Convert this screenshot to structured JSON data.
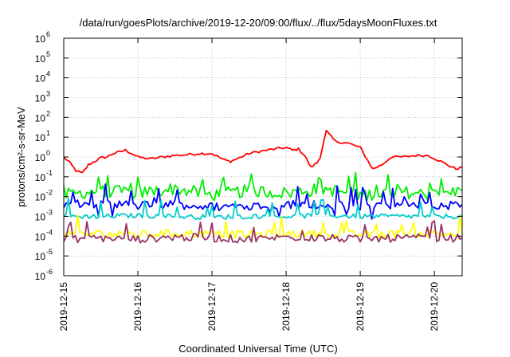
{
  "chart_data": {
    "type": "line",
    "title": "/data/run/goesPlots/archive/2019-12-20/09:00/flux/../flux/5daysMoonFluxes.txt",
    "xlabel": "Coordinated Universal Time (UTC)",
    "ylabel": "protons/cm²-s-sr-MeV",
    "y_scale": "log",
    "ylim": [
      1e-06,
      1000000.0
    ],
    "xlim": [
      "2019-12-15T00:00",
      "2019-12-20T09:00"
    ],
    "grid": true,
    "legend": "none",
    "x_ticks": [
      "2019-12-15",
      "2019-12-16",
      "2019-12-17",
      "2019-12-18",
      "2019-12-19",
      "2019-12-20"
    ],
    "y_ticks": [
      {
        "base": "10",
        "exp": "-6"
      },
      {
        "base": "10",
        "exp": "-5"
      },
      {
        "base": "10",
        "exp": "-4"
      },
      {
        "base": "10",
        "exp": "-3"
      },
      {
        "base": "10",
        "exp": "-2"
      },
      {
        "base": "10",
        "exp": "-1"
      },
      {
        "base": "10",
        "exp": "0"
      },
      {
        "base": "10",
        "exp": "1"
      },
      {
        "base": "10",
        "exp": "2"
      },
      {
        "base": "10",
        "exp": "3"
      },
      {
        "base": "10",
        "exp": "4"
      },
      {
        "base": "10",
        "exp": "5"
      },
      {
        "base": "10",
        "exp": "6"
      }
    ],
    "series": [
      {
        "color": "#ff0000",
        "x": [
          "2019-12-15T00:00",
          "2019-12-15T02:00",
          "2019-12-15T04:00",
          "2019-12-15T06:00",
          "2019-12-15T08:00",
          "2019-12-15T10:00",
          "2019-12-15T12:00",
          "2019-12-15T14:00",
          "2019-12-15T16:00",
          "2019-12-15T18:00",
          "2019-12-15T20:00",
          "2019-12-15T22:00",
          "2019-12-16T00:00",
          "2019-12-16T04:00",
          "2019-12-16T08:00",
          "2019-12-16T12:00",
          "2019-12-16T16:00",
          "2019-12-16T20:00",
          "2019-12-17T00:00",
          "2019-12-17T04:00",
          "2019-12-17T06:00",
          "2019-12-17T08:00",
          "2019-12-17T12:00",
          "2019-12-17T16:00",
          "2019-12-17T20:00",
          "2019-12-18T00:00",
          "2019-12-18T02:00",
          "2019-12-18T04:00",
          "2019-12-18T06:00",
          "2019-12-18T08:00",
          "2019-12-18T10:00",
          "2019-12-18T11:00",
          "2019-12-18T13:00",
          "2019-12-18T16:00",
          "2019-12-18T20:00",
          "2019-12-19T00:00",
          "2019-12-19T04:00",
          "2019-12-19T07:00",
          "2019-12-19T10:00",
          "2019-12-19T14:00",
          "2019-12-19T18:00",
          "2019-12-19T22:00",
          "2019-12-20T02:00",
          "2019-12-20T05:00",
          "2019-12-20T07:00",
          "2019-12-20T09:00"
        ],
        "values": [
          1.0,
          0.5,
          0.2,
          0.15,
          0.4,
          0.6,
          0.9,
          1.0,
          1.5,
          1.8,
          2.2,
          1.5,
          1.0,
          0.8,
          1.0,
          1.2,
          1.3,
          1.5,
          1.5,
          0.7,
          0.6,
          0.8,
          1.5,
          2.0,
          2.5,
          3.0,
          2.2,
          2.5,
          1.2,
          0.3,
          0.5,
          1.0,
          20,
          6,
          5,
          3,
          0.25,
          0.4,
          1.0,
          1.0,
          1.2,
          1.2,
          0.6,
          0.35,
          0.25,
          0.3
        ]
      },
      {
        "color": "#00ee00",
        "x": [
          "2019-12-15T00:00",
          "2019-12-15T12:00",
          "2019-12-16T00:00",
          "2019-12-16T12:00",
          "2019-12-17T00:00",
          "2019-12-17T12:00",
          "2019-12-18T00:00",
          "2019-12-18T12:00",
          "2019-12-19T00:00",
          "2019-12-19T12:00",
          "2019-12-20T00:00",
          "2019-12-20T09:00"
        ],
        "values": [
          0.012,
          0.02,
          0.015,
          0.025,
          0.012,
          0.02,
          0.015,
          0.025,
          0.012,
          0.018,
          0.012,
          0.02
        ]
      },
      {
        "color": "#0000ff",
        "x": [
          "2019-12-15T00:00",
          "2019-12-15T12:00",
          "2019-12-16T00:00",
          "2019-12-16T12:00",
          "2019-12-17T00:00",
          "2019-12-17T12:00",
          "2019-12-18T00:00",
          "2019-12-18T12:00",
          "2019-12-19T00:00",
          "2019-12-19T12:00",
          "2019-12-20T00:00",
          "2019-12-20T09:00"
        ],
        "values": [
          0.004,
          0.004,
          0.0035,
          0.004,
          0.003,
          0.0035,
          0.004,
          0.004,
          0.0035,
          0.004,
          0.003,
          0.004
        ]
      },
      {
        "color": "#00cccc",
        "x": [
          "2019-12-15T00:00",
          "2019-12-15T12:00",
          "2019-12-16T00:00",
          "2019-12-16T12:00",
          "2019-12-17T00:00",
          "2019-12-17T12:00",
          "2019-12-18T00:00",
          "2019-12-18T12:00",
          "2019-12-19T00:00",
          "2019-12-19T12:00",
          "2019-12-20T00:00",
          "2019-12-20T09:00"
        ],
        "values": [
          0.001,
          0.001,
          0.0011,
          0.001,
          0.0009,
          0.001,
          0.001,
          0.0011,
          0.001,
          0.001,
          0.001,
          0.001
        ]
      },
      {
        "color": "#ffff00",
        "x": [
          "2019-12-15T00:00",
          "2019-12-15T12:00",
          "2019-12-16T00:00",
          "2019-12-16T12:00",
          "2019-12-17T00:00",
          "2019-12-17T12:00",
          "2019-12-18T00:00",
          "2019-12-18T12:00",
          "2019-12-19T00:00",
          "2019-12-19T12:00",
          "2019-12-20T00:00",
          "2019-12-20T09:00"
        ],
        "values": [
          0.00012,
          0.00013,
          0.00012,
          0.00014,
          0.00013,
          0.00012,
          0.00014,
          0.00013,
          0.00012,
          0.00013,
          0.00014,
          0.00012
        ]
      },
      {
        "color": "#993366",
        "x": [
          "2019-12-15T00:00",
          "2019-12-15T12:00",
          "2019-12-16T00:00",
          "2019-12-16T12:00",
          "2019-12-17T00:00",
          "2019-12-17T12:00",
          "2019-12-18T00:00",
          "2019-12-18T12:00",
          "2019-12-19T00:00",
          "2019-12-19T12:00",
          "2019-12-20T00:00",
          "2019-12-20T09:00"
        ],
        "values": [
          7e-05,
          8e-05,
          7e-05,
          9e-05,
          8e-05,
          7e-05,
          9e-05,
          8e-05,
          7e-05,
          8e-05,
          8e-05,
          8e-05
        ]
      }
    ]
  }
}
